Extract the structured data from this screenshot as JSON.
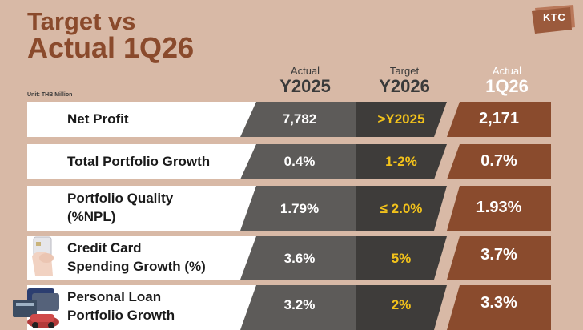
{
  "title": {
    "line1": "Target vs",
    "line2": "Actual 1Q26"
  },
  "logo": {
    "text": "KTC"
  },
  "unit": "Unit: THB Million",
  "columns": {
    "actual": {
      "line1": "Actual",
      "line2": "Y2025"
    },
    "target": {
      "line1": "Target",
      "line2": "Y2026"
    },
    "q": {
      "line1": "Actual",
      "line2": "1Q26"
    }
  },
  "rows": [
    {
      "label_line1": "Net Profit",
      "label_line2": "",
      "actual": "7,782",
      "target": ">Y2025",
      "q": "2,171"
    },
    {
      "label_line1": "Total Portfolio Growth",
      "label_line2": "",
      "actual": "0.4%",
      "target": "1-2%",
      "q": "0.7%"
    },
    {
      "label_line1": "Portfolio Quality",
      "label_line2": "(%NPL)",
      "actual": "1.79%",
      "target": "≤ 2.0%",
      "q": "1.93%"
    },
    {
      "label_line1": "Credit Card",
      "label_line2": "Spending Growth (%)",
      "actual": "3.6%",
      "target": "5%",
      "q": "3.7%"
    },
    {
      "label_line1": "Personal Loan",
      "label_line2": "Portfolio Growth",
      "actual": "3.2%",
      "target": "2%",
      "q": "3.3%"
    }
  ],
  "colors": {
    "background": "#d8b9a6",
    "title": "#8a4a2c",
    "actual_cell": "#5d5b59",
    "target_cell": "#3e3c3a",
    "target_text": "#f2c21b",
    "q_cell": "#8a4b2d"
  },
  "icons": {
    "card": "credit-card-hand-icon",
    "loan": "personal-loan-icon"
  }
}
